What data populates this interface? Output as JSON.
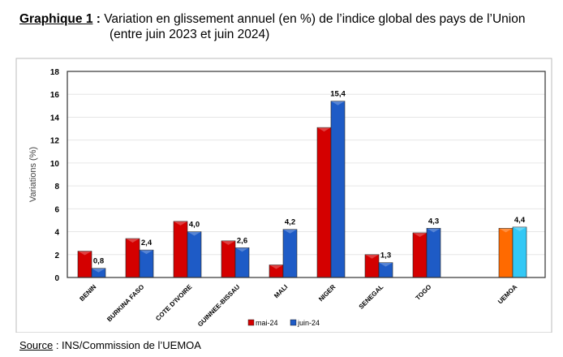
{
  "title": {
    "label": "Graphique 1",
    "sep": " : ",
    "line1": "Variation en glissement annuel (en %) de l’indice global des pays de l’Union",
    "line2": "(entre juin 2023 et juin 2024)"
  },
  "source": {
    "label": "Source",
    "text": " : INS/Commission de l’UEMOA"
  },
  "chart_data": {
    "type": "bar",
    "title": "Variation en glissement annuel (en %) de l’indice global des pays de l’Union (entre juin 2023 et juin 2024)",
    "xlabel": "",
    "ylabel": "Variations (%)",
    "ylim": [
      0,
      18
    ],
    "yticks": [
      0,
      2,
      4,
      6,
      8,
      10,
      12,
      14,
      16,
      18
    ],
    "categories": [
      "BENIN",
      "BURKINA FASO",
      "COTE D'IVOIRE",
      "GUINNEE-BISSAU",
      "MALI",
      "NIGER",
      "SENEGAL",
      "TOGO",
      "UEMOA"
    ],
    "series": [
      {
        "name": "mai-24",
        "color": "#d40000",
        "values": [
          2.3,
          3.4,
          4.9,
          3.2,
          1.1,
          13.1,
          2.0,
          3.9,
          4.3
        ],
        "labels": [
          "",
          "",
          "",
          "",
          "",
          "",
          "",
          "",
          ""
        ]
      },
      {
        "name": "juin-24",
        "color": "#1e5bc6",
        "values": [
          0.8,
          2.4,
          4.0,
          2.6,
          4.2,
          15.4,
          1.3,
          4.3,
          4.4
        ],
        "labels": [
          "0,8",
          "2,4",
          "4,0",
          "2,6",
          "4,2",
          "15,4",
          "1,3",
          "4,3",
          "4,4"
        ]
      }
    ],
    "highlight_colors": {
      "mai-24": "#ff6a00",
      "juin-24": "#33c8f5"
    },
    "legend": "bottom",
    "grid": true
  }
}
